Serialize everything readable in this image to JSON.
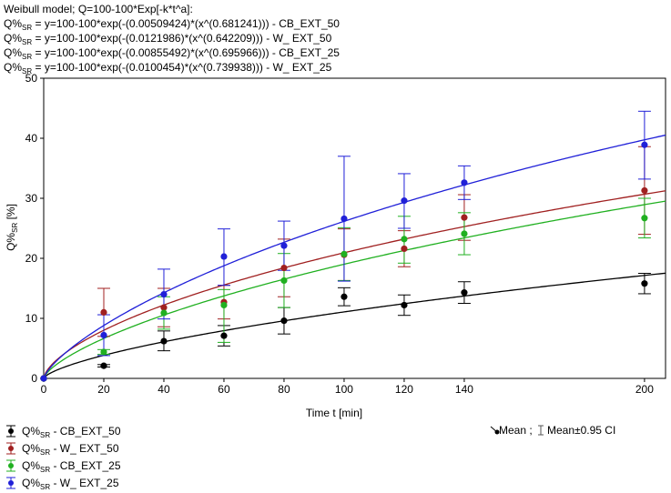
{
  "header": {
    "model": "Weibull model; Q=100-100*Exp[-k*t^a]:",
    "lines": [
      {
        "prefix": "Q%",
        "sub": "SR",
        "eq": " = y=100-100*exp(-(0.00509424)*(x^(0.681241))) - CB_EXT_50"
      },
      {
        "prefix": "Q%",
        "sub": "SR",
        "eq": " = y=100-100*exp(-(0.0121986)*(x^(0.642209))) - W_ EXT_50"
      },
      {
        "prefix": "Q%",
        "sub": "SR",
        "eq": " = y=100-100*exp(-(0.00855492)*(x^(0.695966))) - CB_EXT_25"
      },
      {
        "prefix": "Q%",
        "sub": "SR",
        "eq": " = y=100-100*exp(-(0.0100454)*(x^(0.739938))) - W_ EXT_25"
      }
    ]
  },
  "legend_key": {
    "mean": "Mean ;",
    "ci": "Mean±0.95 CI"
  },
  "chart_data": {
    "type": "scatter",
    "xlabel": "Time t [min]",
    "ylabel_main": "Q%",
    "ylabel_sub": "SR",
    "ylabel_tail": " [%]",
    "xlim": [
      0,
      207
    ],
    "ylim": [
      0,
      50
    ],
    "xticks": [
      0,
      20,
      40,
      60,
      80,
      100,
      120,
      140,
      200
    ],
    "yticks": [
      0,
      10,
      20,
      30,
      40,
      50
    ],
    "grid": false,
    "legend_position": "bottom-left",
    "x": [
      0,
      20,
      40,
      60,
      80,
      100,
      120,
      140,
      200
    ],
    "series": [
      {
        "name": "CB_EXT_50",
        "prefix": "Q%",
        "sub": "SR",
        "label": " - CB_EXT_50",
        "color": "#000000",
        "k": 0.00509424,
        "a": 0.681241,
        "means": [
          0,
          2.1,
          6.2,
          7.1,
          9.6,
          13.6,
          12.2,
          14.3,
          15.8
        ],
        "ci_low": [
          0,
          1.9,
          4.6,
          5.4,
          7.4,
          12.1,
          10.5,
          12.5,
          14.1
        ],
        "ci_high": [
          0,
          2.3,
          7.9,
          8.8,
          11.8,
          15.1,
          13.9,
          16.1,
          17.5
        ]
      },
      {
        "name": "W_ EXT_50",
        "prefix": "Q%",
        "sub": "SR",
        "label": " - W_ EXT_50",
        "color": "#a02020",
        "k": 0.0121986,
        "a": 0.642209,
        "means": [
          0,
          11.0,
          11.8,
          12.7,
          18.4,
          20.6,
          21.6,
          26.8,
          31.3
        ],
        "ci_low": [
          0,
          7.0,
          8.6,
          9.9,
          13.6,
          16.3,
          18.6,
          23.0,
          24.0
        ],
        "ci_high": [
          0,
          15.0,
          15.0,
          15.5,
          23.2,
          24.9,
          24.6,
          30.6,
          38.6
        ]
      },
      {
        "name": "CB_EXT_25",
        "prefix": "Q%",
        "sub": "SR",
        "label": " - CB_EXT_25",
        "color": "#20b020",
        "k": 0.00855492,
        "a": 0.695966,
        "means": [
          0,
          4.4,
          10.9,
          12.2,
          16.3,
          20.7,
          23.2,
          24.1,
          26.7
        ],
        "ci_low": [
          0,
          4.0,
          8.2,
          6.0,
          11.8,
          16.3,
          19.2,
          20.6,
          23.4
        ],
        "ci_high": [
          0,
          4.8,
          13.6,
          14.8,
          20.8,
          25.1,
          27.0,
          27.6,
          30.0
        ]
      },
      {
        "name": "W_ EXT_25",
        "prefix": "Q%",
        "sub": "SR",
        "label": " - W_ EXT_25",
        "color": "#2020d8",
        "k": 0.0100454,
        "a": 0.739938,
        "means": [
          0,
          7.2,
          14.0,
          20.3,
          22.1,
          26.6,
          29.6,
          32.6,
          38.9
        ],
        "ci_low": [
          0,
          3.8,
          9.9,
          15.5,
          18.0,
          16.2,
          25.0,
          29.8,
          33.2
        ],
        "ci_high": [
          0,
          10.6,
          18.2,
          24.9,
          26.2,
          37.0,
          34.1,
          35.4,
          44.5
        ]
      }
    ]
  }
}
